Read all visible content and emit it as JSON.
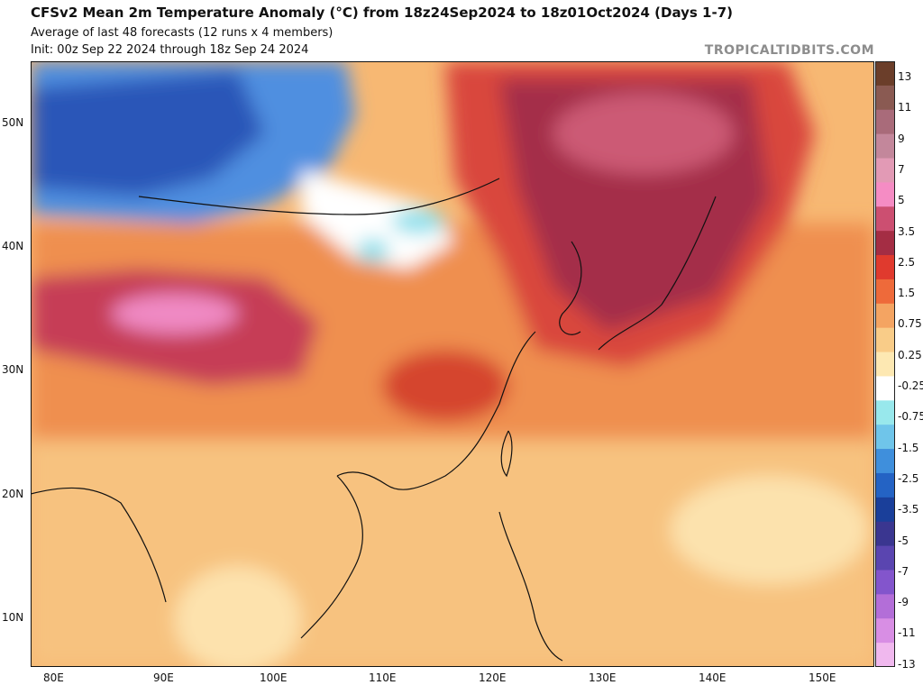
{
  "header": {
    "title": "CFSv2 Mean 2m Temperature Anomaly (°C) from 18z24Sep2024 to 18z01Oct2024 (Days 1-7)",
    "subtitle1": "Average of last 48 forecasts (12 runs x 4 members)",
    "subtitle2": "Init: 00z Sep 22 2024 through 18z Sep 24 2024",
    "brand": "TROPICALTIDBITS.COM"
  },
  "map": {
    "lat_labels": [
      "50N",
      "40N",
      "30N",
      "20N",
      "10N"
    ],
    "lon_labels": [
      "80E",
      "90E",
      "100E",
      "110E",
      "120E",
      "130E",
      "140E",
      "150E"
    ]
  },
  "colorbar": {
    "labels": [
      "13",
      "11",
      "9",
      "7",
      "5",
      "3.5",
      "2.5",
      "1.5",
      "0.75",
      "0.25",
      "-0.25",
      "-0.75",
      "-1.5",
      "-2.5",
      "-3.5",
      "-5",
      "-7",
      "-9",
      "-11",
      "-13"
    ],
    "colors": [
      "#6b3e2a",
      "#8a5a52",
      "#a96b7a",
      "#c3879b",
      "#e29ab5",
      "#f58cc4",
      "#cc4f71",
      "#a42d44",
      "#e03a2e",
      "#ee6a3a",
      "#f4a462",
      "#f9cc88",
      "#fde8b2",
      "#ffffff",
      "#98e8ec",
      "#6fc5ea",
      "#3f8fdc",
      "#2463c4",
      "#1a3f9a",
      "#3a3690",
      "#5a45b0",
      "#8355cc",
      "#b36ed8",
      "#d88ee4",
      "#f0b8ee"
    ]
  }
}
